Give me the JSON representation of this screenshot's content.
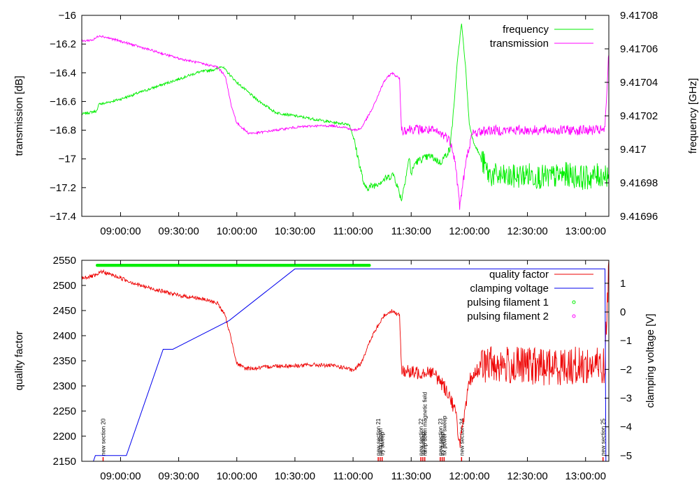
{
  "colors": {
    "frequency": "#00ee00",
    "transmission": "#ff00ff",
    "quality_factor": "#ee0000",
    "clamping_voltage": "#0000ee",
    "pulsing_filament_1": "#00ee00",
    "pulsing_filament_2": "#ff00ff",
    "axis": "#000000"
  },
  "chart_data": [
    {
      "type": "line",
      "id": "top",
      "title": "",
      "xlabel": "",
      "ylabel": "transmission [dB]",
      "y2label": "frequency [GHz]",
      "xlim_minutes": [
        520,
        792
      ],
      "ylim": [
        -17.4,
        -16.0
      ],
      "y2lim": [
        9.41696,
        9.41708
      ],
      "x_ticks": [
        {
          "min": 540,
          "label": "09:00:00"
        },
        {
          "min": 570,
          "label": "09:30:00"
        },
        {
          "min": 600,
          "label": "10:00:00"
        },
        {
          "min": 630,
          "label": "10:30:00"
        },
        {
          "min": 660,
          "label": "11:00:00"
        },
        {
          "min": 690,
          "label": "11:30:00"
        },
        {
          "min": 720,
          "label": "12:00:00"
        },
        {
          "min": 750,
          "label": "12:30:00"
        },
        {
          "min": 780,
          "label": "13:00:00"
        }
      ],
      "y_ticks": [
        {
          "v": -16.0,
          "label": "−16"
        },
        {
          "v": -16.2,
          "label": "−16.2"
        },
        {
          "v": -16.4,
          "label": "−16.4"
        },
        {
          "v": -16.6,
          "label": "−16.6"
        },
        {
          "v": -16.8,
          "label": "−16.8"
        },
        {
          "v": -17.0,
          "label": "−17"
        },
        {
          "v": -17.2,
          "label": "−17.2"
        },
        {
          "v": -17.4,
          "label": "−17.4"
        }
      ],
      "y2_ticks": [
        {
          "v": 9.41708,
          "label": "9.41708"
        },
        {
          "v": 9.41706,
          "label": "9.41706"
        },
        {
          "v": 9.41704,
          "label": "9.41704"
        },
        {
          "v": 9.41702,
          "label": "9.41702"
        },
        {
          "v": 9.417,
          "label": "9.417"
        },
        {
          "v": 9.41698,
          "label": "9.41698"
        },
        {
          "v": 9.41696,
          "label": "9.41696"
        }
      ],
      "legend_position": "top-right",
      "series": [
        {
          "name": "frequency",
          "axis": "y2",
          "x": [
            520,
            528,
            529,
            530,
            540,
            550,
            560,
            570,
            580,
            590,
            592,
            596,
            600,
            610,
            620,
            630,
            640,
            650,
            658,
            660,
            662,
            666,
            670,
            676,
            681,
            685,
            689,
            690,
            692,
            695,
            700,
            705,
            710,
            712,
            714,
            716,
            718,
            720,
            722,
            726,
            730,
            740,
            750,
            760,
            770,
            780,
            790,
            792
          ],
          "values": [
            9.417021,
            9.417023,
            9.417028,
            9.417027,
            9.41703,
            9.417034,
            9.417038,
            9.417042,
            9.417046,
            9.417048,
            9.41705,
            9.417045,
            9.41704,
            9.41703,
            9.417022,
            9.41702,
            9.417018,
            9.417016,
            9.417015,
            9.417008,
            9.416998,
            9.416977,
            9.416978,
            9.416982,
            9.416985,
            9.41697,
            9.416995,
            9.416985,
            9.416992,
            9.416994,
            9.416996,
            9.416992,
            9.417,
            9.417025,
            9.417055,
            9.417075,
            9.41705,
            9.417015,
            9.417005,
            9.416995,
            9.416985,
            9.416983,
            9.416985,
            9.416983,
            9.416985,
            9.416983,
            9.416985,
            9.416985
          ]
        },
        {
          "name": "transmission",
          "axis": "y",
          "x": [
            520,
            526,
            529,
            540,
            550,
            560,
            570,
            580,
            590,
            594,
            597,
            600,
            606,
            610,
            620,
            630,
            640,
            650,
            656,
            660,
            664,
            670,
            676,
            680,
            684,
            685,
            690,
            700,
            704,
            708,
            711,
            713,
            715,
            718,
            720,
            722,
            730,
            740,
            750,
            760,
            770,
            780,
            790,
            792
          ],
          "values": [
            -16.18,
            -16.17,
            -16.14,
            -16.18,
            -16.22,
            -16.26,
            -16.3,
            -16.33,
            -16.36,
            -16.42,
            -16.62,
            -16.75,
            -16.82,
            -16.82,
            -16.8,
            -16.78,
            -16.77,
            -16.77,
            -16.78,
            -16.8,
            -16.79,
            -16.65,
            -16.46,
            -16.4,
            -16.44,
            -16.8,
            -16.79,
            -16.8,
            -16.82,
            -16.84,
            -16.9,
            -17.05,
            -17.33,
            -17.05,
            -16.9,
            -16.82,
            -16.8,
            -16.8,
            -16.8,
            -16.8,
            -16.8,
            -16.8,
            -16.8,
            -16.25
          ]
        }
      ]
    },
    {
      "type": "line",
      "id": "bottom",
      "title": "",
      "xlabel": "",
      "ylabel": "quality factor",
      "y2label": "clamping voltage [V]",
      "xlim_minutes": [
        520,
        792
      ],
      "ylim": [
        2150,
        2550
      ],
      "y2lim": [
        -5.2,
        1.8
      ],
      "x_ticks": [
        {
          "min": 540,
          "label": "09:00:00"
        },
        {
          "min": 570,
          "label": "09:30:00"
        },
        {
          "min": 600,
          "label": "10:00:00"
        },
        {
          "min": 630,
          "label": "10:30:00"
        },
        {
          "min": 660,
          "label": "11:00:00"
        },
        {
          "min": 690,
          "label": "11:30:00"
        },
        {
          "min": 720,
          "label": "12:00:00"
        },
        {
          "min": 750,
          "label": "12:30:00"
        },
        {
          "min": 780,
          "label": "13:00:00"
        }
      ],
      "y_ticks": [
        {
          "v": 2550,
          "label": "2550"
        },
        {
          "v": 2500,
          "label": "2500"
        },
        {
          "v": 2450,
          "label": "2450"
        },
        {
          "v": 2400,
          "label": "2400"
        },
        {
          "v": 2350,
          "label": "2350"
        },
        {
          "v": 2300,
          "label": "2300"
        },
        {
          "v": 2250,
          "label": "2250"
        },
        {
          "v": 2200,
          "label": "2200"
        },
        {
          "v": 2150,
          "label": "2150"
        }
      ],
      "y2_ticks": [
        {
          "v": 1,
          "label": "1"
        },
        {
          "v": 0,
          "label": "0"
        },
        {
          "v": -1,
          "label": "−1"
        },
        {
          "v": -2,
          "label": "−2"
        },
        {
          "v": -3,
          "label": "−3"
        },
        {
          "v": -4,
          "label": "−4"
        },
        {
          "v": -5,
          "label": "−5"
        }
      ],
      "legend_position": "top-right",
      "series": [
        {
          "name": "quality factor",
          "axis": "y",
          "x": [
            520,
            528,
            530,
            540,
            550,
            560,
            570,
            580,
            590,
            594,
            598,
            600,
            604,
            610,
            620,
            630,
            640,
            650,
            656,
            660,
            664,
            670,
            676,
            680,
            684,
            685,
            690,
            700,
            705,
            710,
            713,
            715,
            718,
            720,
            725,
            730,
            740,
            750,
            760,
            770,
            780,
            790,
            792
          ],
          "values": [
            2515,
            2520,
            2528,
            2515,
            2500,
            2490,
            2480,
            2475,
            2465,
            2440,
            2380,
            2345,
            2335,
            2335,
            2340,
            2340,
            2342,
            2340,
            2336,
            2330,
            2345,
            2400,
            2440,
            2450,
            2440,
            2335,
            2325,
            2330,
            2310,
            2280,
            2245,
            2185,
            2250,
            2310,
            2335,
            2345,
            2340,
            2340,
            2338,
            2340,
            2340,
            2340,
            2550
          ]
        },
        {
          "name": "clamping voltage",
          "axis": "y2",
          "x": [
            520,
            526,
            527,
            533,
            543,
            562,
            567,
            596,
            630,
            636,
            650,
            670,
            700,
            720,
            760,
            790,
            790.5,
            792
          ],
          "values": [
            -5.2,
            -5.2,
            -5.0,
            -5.0,
            -5.0,
            -1.3,
            -1.3,
            -0.3,
            1.5,
            1.5,
            1.5,
            1.5,
            1.5,
            1.5,
            1.5,
            1.5,
            -5.2,
            -5.2
          ]
        },
        {
          "name": "pulsing filament 1",
          "axis": "y",
          "marker": "circle",
          "x_range": [
            528,
            669
          ],
          "y": 2540
        },
        {
          "name": "pulsing filament 2",
          "axis": "y",
          "marker": "circle",
          "x": [],
          "values": []
        }
      ],
      "markers": [
        {
          "min": 531,
          "label": "new section 20"
        },
        {
          "min": 673,
          "label": "new section 21"
        },
        {
          "min": 674,
          "label": "ramp down"
        },
        {
          "min": 675,
          "label": "try sweep"
        },
        {
          "min": 695,
          "label": "new section 22"
        },
        {
          "min": 696,
          "label": "try sweep"
        },
        {
          "min": 697,
          "label": "ramp down magnetic field"
        },
        {
          "min": 705,
          "label": "new section 23"
        },
        {
          "min": 706,
          "label": "try sweep"
        },
        {
          "min": 707,
          "label": "fix power sweep"
        },
        {
          "min": 716,
          "label": "new section 24"
        },
        {
          "min": 789,
          "label": "new section 25"
        }
      ]
    }
  ]
}
